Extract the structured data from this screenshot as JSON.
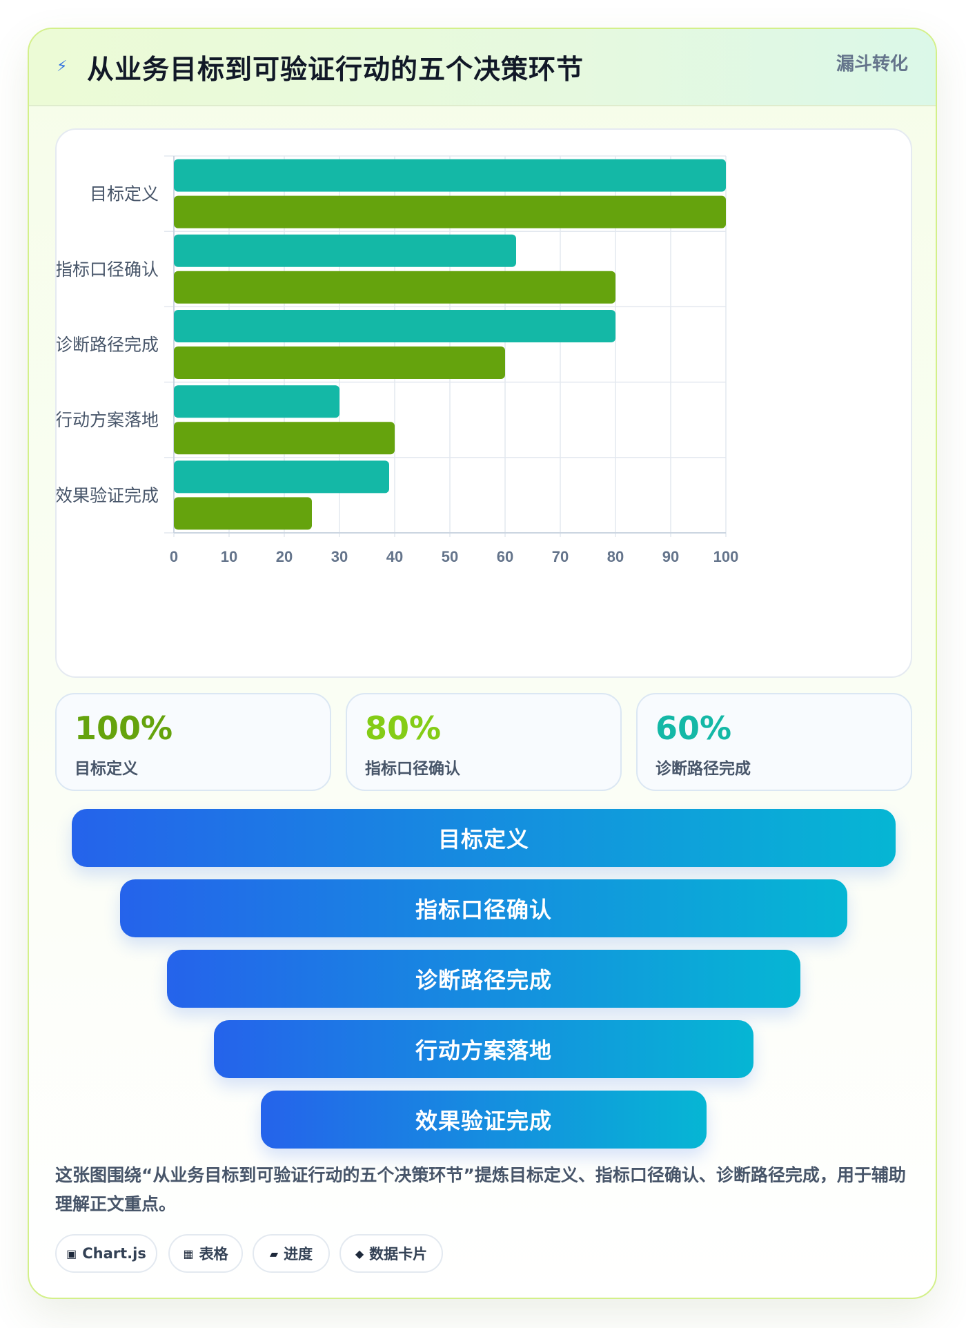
{
  "header": {
    "title": "从业务目标到可验证行动的五个决策环节",
    "tag": "漏斗转化",
    "bolt_icon": "lightning-icon"
  },
  "chart_data": {
    "type": "bar",
    "orientation": "horizontal",
    "categories": [
      "目标定义",
      "指标口径确认",
      "诊断路径完成",
      "行动方案落地",
      "效果验证完成"
    ],
    "series": [
      {
        "values": [
          100,
          62,
          80,
          30,
          39
        ],
        "color": "#14b8a6"
      },
      {
        "values": [
          100,
          80,
          60,
          40,
          25
        ],
        "color": "#65a30d"
      }
    ],
    "xlim": [
      0,
      100
    ],
    "xticks": [
      "0",
      "10",
      "20",
      "30",
      "40",
      "50",
      "60",
      "70",
      "80",
      "90",
      "100"
    ],
    "grid": true,
    "legend": "none"
  },
  "stats": [
    {
      "value": "100%",
      "label": "目标定义",
      "color": "#65a30d"
    },
    {
      "value": "80%",
      "label": "指标口径确认",
      "color": "#84cc16"
    },
    {
      "value": "60%",
      "label": "诊断路径完成",
      "color": "#14b8a6"
    }
  ],
  "funnel": [
    "目标定义",
    "指标口径确认",
    "诊断路径完成",
    "行动方案落地",
    "效果验证完成"
  ],
  "description": "这张图围绕“从业务目标到可验证行动的五个决策环节”提炼目标定义、指标口径确认、诊断路径完成，用于辅助理解正文重点。",
  "chips": [
    {
      "icon": "▣",
      "label": "Chart.js"
    },
    {
      "icon": "▦",
      "label": "表格"
    },
    {
      "icon": "▰",
      "label": "进度"
    },
    {
      "icon": "◆",
      "label": "数据卡片"
    }
  ]
}
